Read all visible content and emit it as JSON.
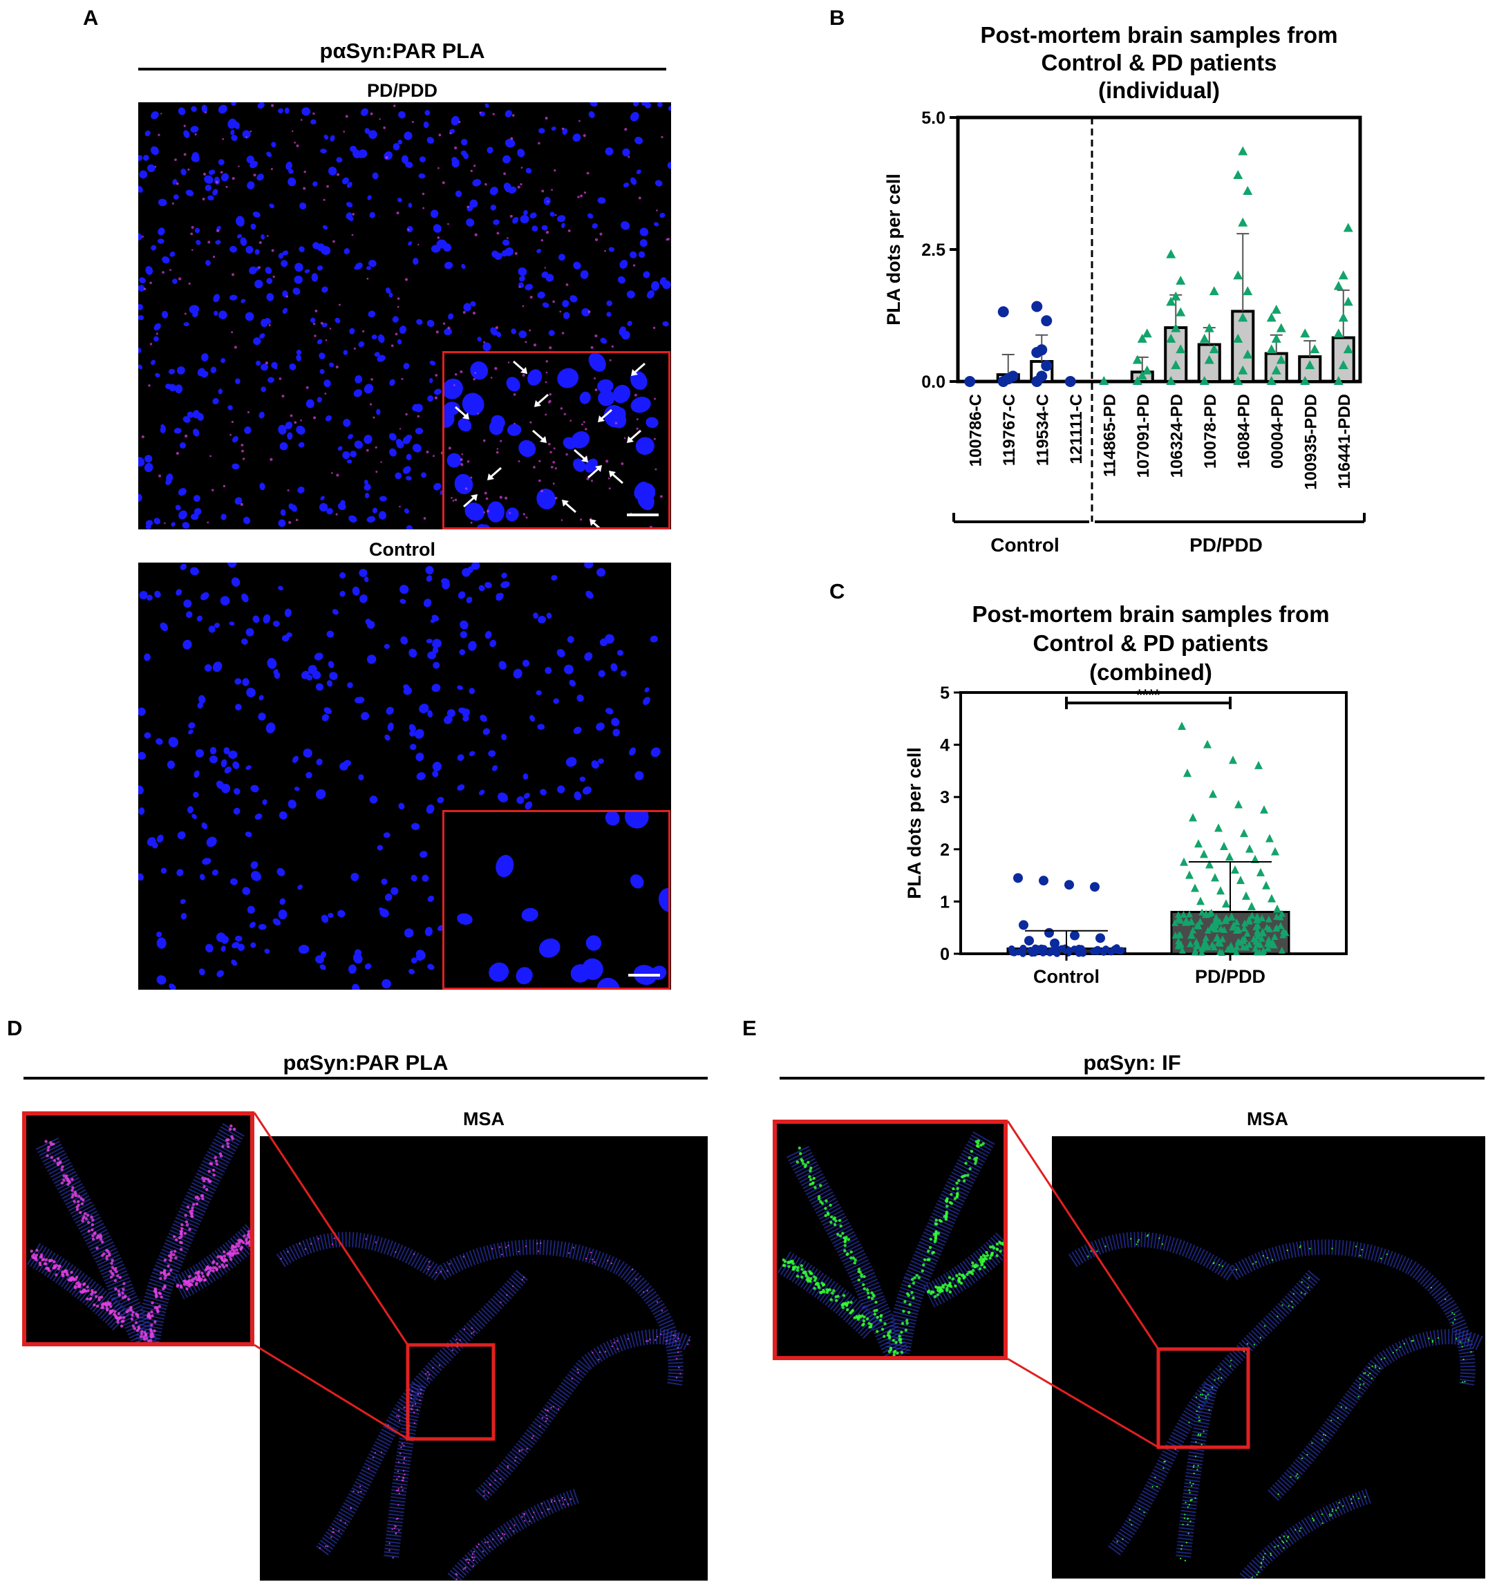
{
  "panels": {
    "A": {
      "letter": "A",
      "header": "pαSyn:PAR PLA",
      "top_label": "PD/PDD",
      "bottom_label": "Control"
    },
    "B": {
      "letter": "B"
    },
    "C": {
      "letter": "C"
    },
    "D": {
      "letter": "D",
      "header": "pαSyn:PAR PLA",
      "image_label": "MSA"
    },
    "E": {
      "letter": "E",
      "header": "pαSyn: IF",
      "image_label": "MSA"
    }
  },
  "colors": {
    "nuclei": "#1a1aff",
    "pla_signal": "#e040e0",
    "if_signal": "#33ff33",
    "inset_border": "#e02020",
    "control_points": "#0a2a9e",
    "pd_points": "#13a36b"
  },
  "chart_data": [
    {
      "type": "bar",
      "title": "Post-mortem brain samples from Control & PD patients (individual)",
      "title_lines": [
        "Post-mortem brain samples from",
        "Control & PD patients",
        "(individual)"
      ],
      "ylabel": "PLA dots per cell",
      "ylim": [
        0,
        5
      ],
      "yticks": [
        0.0,
        2.5,
        5.0
      ],
      "ytick_labels": [
        "0.0",
        "2.5",
        "5.0"
      ],
      "categories": [
        "100786-C",
        "119767-C",
        "119534-C",
        "121111-C",
        "114865-PD",
        "107091-PD",
        "106324-PD",
        "10078-PD",
        "16084-PD",
        "00004-PD",
        "100935-PDD",
        "116441-PDD"
      ],
      "values": [
        0.0,
        0.13,
        0.38,
        0.0,
        0.0,
        0.18,
        1.02,
        0.7,
        1.33,
        0.53,
        0.47,
        0.83
      ],
      "error": [
        0.0,
        0.38,
        0.5,
        0.0,
        0.0,
        0.28,
        0.62,
        0.32,
        1.47,
        0.35,
        0.3,
        0.9
      ],
      "group_labels": [
        "Control",
        "PD/PDD"
      ],
      "group_of_category": [
        0,
        0,
        0,
        0,
        1,
        1,
        1,
        1,
        1,
        1,
        1,
        1
      ],
      "points": [
        [
          0.0
        ],
        [
          0.0,
          0.05,
          0.1,
          1.32
        ],
        [
          0.0,
          0.1,
          0.3,
          0.55,
          0.6,
          1.15,
          1.42
        ],
        [
          0.0
        ],
        [
          0.0
        ],
        [
          0.0,
          0.1,
          0.2,
          0.4,
          0.8,
          0.9
        ],
        [
          0.0,
          0.3,
          0.6,
          0.8,
          1.0,
          1.3,
          1.5,
          1.6,
          1.9,
          2.4
        ],
        [
          0.0,
          0.4,
          0.6,
          0.8,
          1.0,
          1.7
        ],
        [
          0.0,
          0.2,
          0.5,
          0.8,
          1.2,
          1.7,
          2.0,
          3.0,
          3.6,
          3.9,
          4.35
        ],
        [
          0.0,
          0.2,
          0.4,
          0.6,
          0.8,
          1.0,
          1.2,
          1.35
        ],
        [
          0.0,
          0.3,
          0.6,
          0.9
        ],
        [
          0.0,
          0.3,
          0.6,
          0.9,
          1.2,
          1.5,
          1.8,
          2.0,
          2.9
        ]
      ]
    },
    {
      "type": "bar",
      "title": "Post-mortem brain samples from Control & PD patients (combined)",
      "title_lines": [
        "Post-mortem brain samples from",
        "Control & PD patients",
        "(combined)"
      ],
      "ylabel": "PLA dots per cell",
      "ylim": [
        0,
        5
      ],
      "yticks": [
        0,
        1,
        2,
        3,
        4,
        5
      ],
      "categories": [
        "Control",
        "PD/PDD"
      ],
      "values": [
        0.1,
        0.8
      ],
      "error": [
        0.34,
        0.96
      ],
      "significance": "****",
      "high_points": [
        [
          1.45,
          1.4,
          1.32,
          1.28,
          0.55,
          0.4,
          0.35,
          0.3,
          0.25,
          0.2
        ],
        [
          4.35,
          4.0,
          3.7,
          3.6,
          3.45,
          3.05,
          2.85,
          2.75,
          2.6,
          2.4,
          2.3,
          2.2,
          2.1,
          2.05,
          2.0,
          1.95,
          1.9,
          1.85,
          1.8,
          1.75,
          1.7,
          1.6,
          1.55,
          1.5,
          1.45,
          1.4,
          1.3,
          1.25,
          1.2,
          1.1,
          1.05,
          1.0,
          0.95,
          0.9,
          0.85,
          0.75,
          0.7,
          0.65,
          0.6,
          0.5,
          0.45,
          0.4,
          0.35,
          0.3,
          0.25,
          0.2,
          0.15
        ]
      ]
    }
  ]
}
